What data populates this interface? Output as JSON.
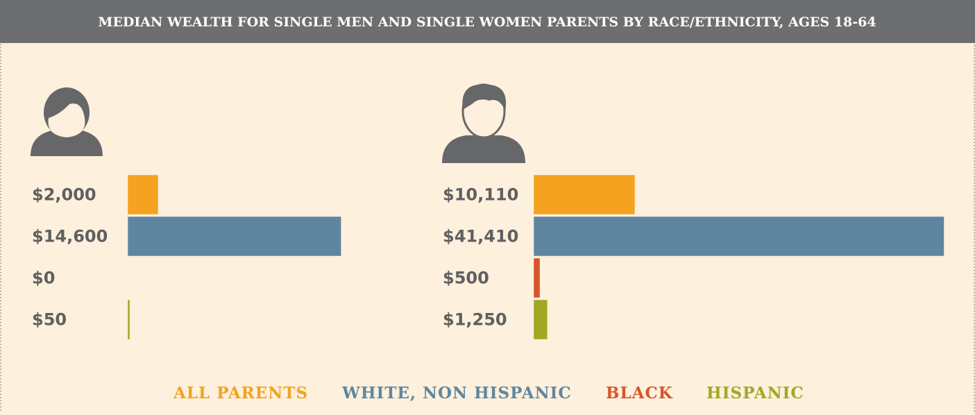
{
  "chart_data": {
    "type": "bar",
    "orientation": "horizontal",
    "title": "MEDIAN WEALTH FOR SINGLE MEN AND SINGLE WOMEN PARENTS BY RACE/ETHNICITY, AGES 18-64",
    "categories": [
      null,
      null
    ],
    "xlim": [
      [
        0,
        15000
      ],
      [
        0,
        42500
      ]
    ],
    "series": [
      {
        "name": "ALL PARENTS",
        "color": "#f4a21f",
        "values": [
          2000,
          10110
        ],
        "value_labels": [
          "$2,000",
          "$10,110"
        ]
      },
      {
        "name": "WHITE, NON HISPANIC",
        "color": "#5e86a0",
        "values": [
          14600,
          41410
        ],
        "value_labels": [
          "$14,600",
          "$41,410"
        ]
      },
      {
        "name": "BLACK",
        "color": "#d9532b",
        "values": [
          0,
          500
        ],
        "value_labels": [
          "$0",
          "$500"
        ]
      },
      {
        "name": "HISPANIC",
        "color": "#a2a823",
        "values": [
          50,
          1250
        ],
        "value_labels": [
          "$50",
          "$1,250"
        ]
      }
    ]
  }
}
